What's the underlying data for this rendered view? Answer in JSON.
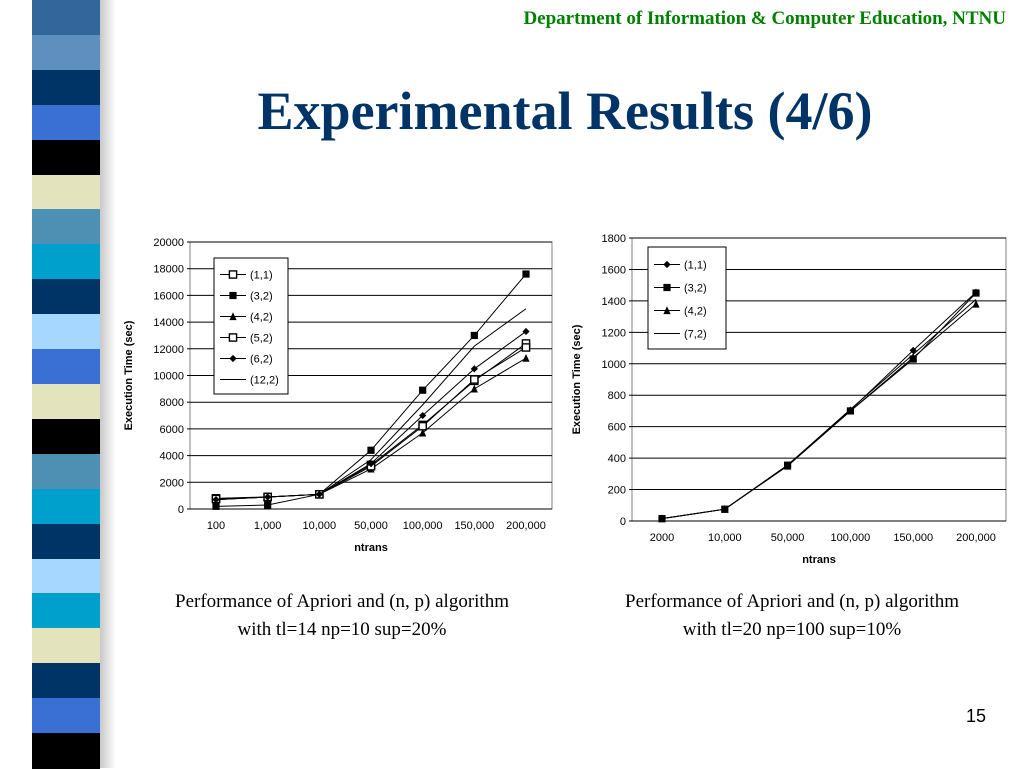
{
  "header": {
    "department": "Department of Information & Computer Education, NTNU"
  },
  "slide": {
    "title": "Experimental Results (4/6)",
    "page_number": "15"
  },
  "decor": {
    "stripe_colors": [
      "#33669a",
      "#5f8fbf",
      "#003366",
      "#3a6fd4",
      "#000000",
      "#e3e3bd",
      "#4d90b3",
      "#00a0cc",
      "#003366",
      "#a6d8ff",
      "#3a6fd4",
      "#e3e3bd",
      "#000000",
      "#4d90b3",
      "#00a0cc",
      "#003366",
      "#a6d8ff",
      "#00a0cc",
      "#e3e3bd",
      "#003366",
      "#3a6fd4",
      "#000000"
    ]
  },
  "captions": {
    "left": {
      "line1": "Performance of Apriori and (n, p) algorithm",
      "line2": "with tl=14 np=10 sup=20%"
    },
    "right": {
      "line1": "Performance of Apriori and (n, p) algorithm",
      "line2": "with tl=20 np=100 sup=10%"
    }
  },
  "chart_data": [
    {
      "type": "line",
      "xlabel": "ntrans",
      "ylabel": "Execution Time (sec)",
      "ylim": [
        0,
        20000
      ],
      "ytick_step": 2000,
      "grid": true,
      "legend_position": "top-left",
      "categories": [
        "100",
        "1,000",
        "10,000",
        "50,000",
        "100,000",
        "150,000",
        "200,000"
      ],
      "series": [
        {
          "name": "(1,1)",
          "marker": "square-open",
          "values": [
            800,
            900,
            1100,
            3300,
            6300,
            9600,
            12400
          ]
        },
        {
          "name": "(3,2)",
          "marker": "square",
          "values": [
            200,
            300,
            1100,
            4400,
            8900,
            13000,
            17600
          ]
        },
        {
          "name": "(4,2)",
          "marker": "triangle",
          "values": [
            700,
            900,
            1100,
            3000,
            5700,
            9000,
            11300
          ]
        },
        {
          "name": "(5,2)",
          "marker": "square-open",
          "values": [
            750,
            900,
            1100,
            3200,
            6200,
            9700,
            12100
          ]
        },
        {
          "name": "(6,2)",
          "marker": "diamond",
          "values": [
            700,
            900,
            1100,
            3400,
            7000,
            10500,
            13300
          ]
        },
        {
          "name": "(12,2)",
          "marker": "none",
          "values": [
            700,
            900,
            1100,
            3700,
            7800,
            12200,
            15000
          ]
        }
      ]
    },
    {
      "type": "line",
      "xlabel": "ntrans",
      "ylabel": "Execution Time (sec)",
      "ylim": [
        0,
        1800
      ],
      "ytick_step": 200,
      "grid": true,
      "legend_position": "top-left",
      "categories": [
        "2000",
        "10,000",
        "50,000",
        "100,000",
        "150,000",
        "200,000"
      ],
      "series": [
        {
          "name": "(1,1)",
          "marker": "diamond",
          "values": [
            15,
            75,
            355,
            705,
            1085,
            1455
          ]
        },
        {
          "name": "(3,2)",
          "marker": "square",
          "values": [
            15,
            75,
            355,
            700,
            1030,
            1450
          ]
        },
        {
          "name": "(4,2)",
          "marker": "triangle",
          "values": [
            15,
            75,
            350,
            700,
            1040,
            1380
          ]
        },
        {
          "name": "(7,2)",
          "marker": "none",
          "values": [
            15,
            75,
            355,
            710,
            1060,
            1410
          ]
        }
      ]
    }
  ]
}
